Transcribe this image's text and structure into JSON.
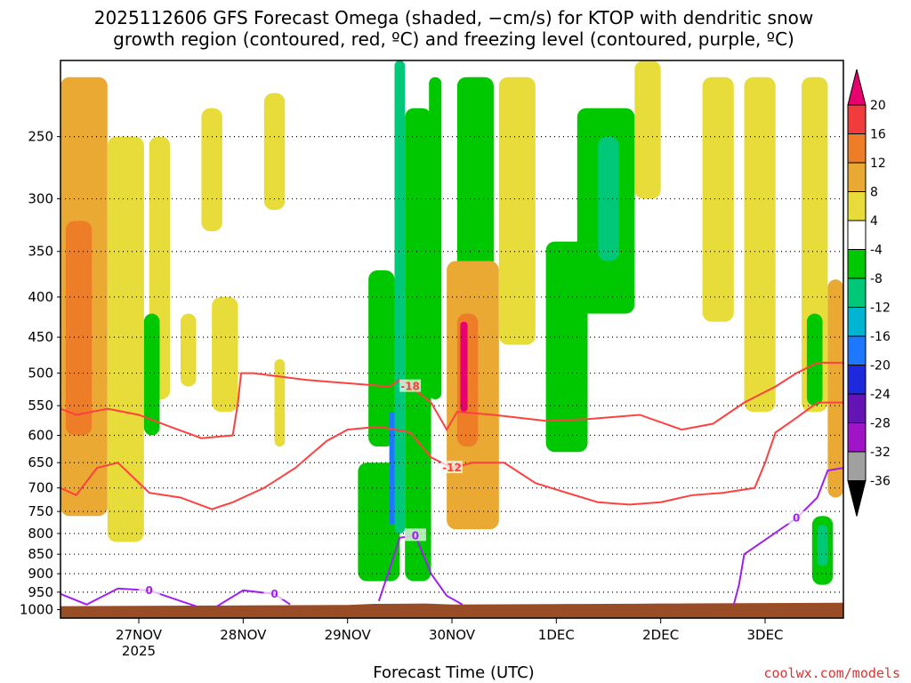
{
  "chart_data": {
    "type": "heatmap",
    "title_line1": "2025112606 GFS Forecast Omega (shaded, −cm/s) for KTOP with dendritic snow",
    "title_line2": "growth region (contoured, red, ºC) and freezing level (contoured, purple, ºC)",
    "xlabel": "Forecast Time (UTC)",
    "credit": "coolwx.com/models",
    "ylim": [
      1000,
      200
    ],
    "y_ticks": [
      250,
      300,
      350,
      400,
      450,
      500,
      550,
      600,
      650,
      700,
      750,
      800,
      850,
      900,
      950,
      1000
    ],
    "x_range_days": [
      26.25,
      33.75
    ],
    "x_ticks": [
      {
        "day": 27,
        "label": "27NOV",
        "sub": "2025"
      },
      {
        "day": 28,
        "label": "28NOV",
        "sub": ""
      },
      {
        "day": 29,
        "label": "29NOV",
        "sub": ""
      },
      {
        "day": 30,
        "label": "30NOV",
        "sub": ""
      },
      {
        "day": 31,
        "label": "1DEC",
        "sub": ""
      },
      {
        "day": 32,
        "label": "2DEC",
        "sub": ""
      },
      {
        "day": 33,
        "label": "3DEC",
        "sub": ""
      }
    ],
    "colorbar": {
      "labels": [
        "20",
        "16",
        "12",
        "8",
        "4",
        "-4",
        "-8",
        "-12",
        "-16",
        "-20",
        "-24",
        "-28",
        "-32",
        "-36"
      ],
      "colors": [
        "#e8006e",
        "#f03c3c",
        "#ee7d28",
        "#e9a933",
        "#e8dc3a",
        "#ffffff",
        "#00c800",
        "#00c878",
        "#00b4d2",
        "#1e78ff",
        "#1e28dc",
        "#6414b4",
        "#a014c8",
        "#a0a0a0"
      ]
    },
    "red_contours": [
      {
        "level": -18,
        "label": "-18",
        "points": [
          [
            26.25,
            555
          ],
          [
            26.4,
            565
          ],
          [
            26.7,
            555
          ],
          [
            27.0,
            565
          ],
          [
            27.3,
            585
          ],
          [
            27.6,
            605
          ],
          [
            27.9,
            600
          ],
          [
            27.95,
            545
          ],
          [
            27.98,
            500
          ],
          [
            28.1,
            500
          ],
          [
            28.6,
            510
          ],
          [
            29.0,
            515
          ],
          [
            29.4,
            520
          ],
          [
            29.5,
            510
          ],
          [
            29.6,
            520
          ],
          [
            29.8,
            545
          ],
          [
            29.95,
            590
          ],
          [
            30.05,
            560
          ],
          [
            30.4,
            565
          ],
          [
            30.9,
            575
          ],
          [
            31.3,
            572
          ],
          [
            31.8,
            565
          ],
          [
            32.2,
            590
          ],
          [
            32.5,
            580
          ],
          [
            32.8,
            545
          ],
          [
            33.1,
            520
          ],
          [
            33.3,
            500
          ],
          [
            33.5,
            485
          ],
          [
            33.75,
            485
          ]
        ]
      },
      {
        "level": -12,
        "label": "-12",
        "points": [
          [
            26.25,
            700
          ],
          [
            26.4,
            715
          ],
          [
            26.6,
            660
          ],
          [
            26.8,
            650
          ],
          [
            27.1,
            710
          ],
          [
            27.4,
            720
          ],
          [
            27.7,
            745
          ],
          [
            27.9,
            730
          ],
          [
            28.2,
            700
          ],
          [
            28.5,
            660
          ],
          [
            28.8,
            610
          ],
          [
            29.0,
            590
          ],
          [
            29.3,
            585
          ],
          [
            29.6,
            595
          ],
          [
            29.8,
            640
          ],
          [
            30.0,
            660
          ],
          [
            30.2,
            650
          ],
          [
            30.5,
            650
          ],
          [
            30.8,
            690
          ],
          [
            31.1,
            710
          ],
          [
            31.4,
            730
          ],
          [
            31.7,
            735
          ],
          [
            32.0,
            730
          ],
          [
            32.3,
            715
          ],
          [
            32.6,
            710
          ],
          [
            32.9,
            700
          ],
          [
            33.0,
            650
          ],
          [
            33.1,
            595
          ],
          [
            33.3,
            570
          ],
          [
            33.5,
            545
          ],
          [
            33.75,
            545
          ]
        ]
      }
    ],
    "purple_contours": [
      {
        "level": 0,
        "label": "0",
        "points": [
          [
            26.25,
            955
          ],
          [
            26.5,
            985
          ],
          [
            26.8,
            940
          ],
          [
            27.1,
            945
          ],
          [
            27.4,
            975
          ],
          [
            27.55,
            990
          ]
        ]
      },
      {
        "level": 0,
        "label": "0",
        "points": [
          [
            27.75,
            990
          ],
          [
            28.0,
            945
          ],
          [
            28.3,
            955
          ],
          [
            28.45,
            985
          ]
        ]
      },
      {
        "level": 0,
        "label": "0",
        "points": [
          [
            29.3,
            975
          ],
          [
            29.4,
            890
          ],
          [
            29.5,
            810
          ],
          [
            29.65,
            805
          ],
          [
            29.8,
            900
          ],
          [
            29.95,
            960
          ],
          [
            30.1,
            985
          ]
        ]
      },
      {
        "level": 0,
        "label": "0",
        "points": [
          [
            32.7,
            985
          ],
          [
            32.75,
            930
          ],
          [
            32.8,
            850
          ],
          [
            33.0,
            815
          ],
          [
            33.3,
            765
          ],
          [
            33.5,
            720
          ],
          [
            33.6,
            665
          ],
          [
            33.75,
            660
          ]
        ]
      }
    ],
    "omega_blobs": [
      {
        "x0": 26.25,
        "x1": 26.7,
        "p0": 210,
        "p1": 760,
        "v": 8
      },
      {
        "x0": 26.3,
        "x1": 26.55,
        "p0": 320,
        "p1": 600,
        "v": 12
      },
      {
        "x0": 26.7,
        "x1": 27.05,
        "p0": 250,
        "p1": 820,
        "v": 4
      },
      {
        "x0": 27.1,
        "x1": 27.3,
        "p0": 250,
        "p1": 540,
        "v": 4
      },
      {
        "x0": 27.4,
        "x1": 27.55,
        "p0": 420,
        "p1": 520,
        "v": 4
      },
      {
        "x0": 27.6,
        "x1": 27.8,
        "p0": 230,
        "p1": 330,
        "v": 4
      },
      {
        "x0": 27.7,
        "x1": 27.95,
        "p0": 400,
        "p1": 560,
        "v": 4
      },
      {
        "x0": 28.2,
        "x1": 28.4,
        "p0": 220,
        "p1": 310,
        "v": 4
      },
      {
        "x0": 28.3,
        "x1": 28.4,
        "p0": 480,
        "p1": 620,
        "v": 4
      },
      {
        "x0": 27.05,
        "x1": 27.2,
        "p0": 420,
        "p1": 600,
        "v": -8
      },
      {
        "x0": 29.2,
        "x1": 29.45,
        "p0": 370,
        "p1": 620,
        "v": -8
      },
      {
        "x0": 29.1,
        "x1": 29.5,
        "p0": 650,
        "p1": 920,
        "v": -8
      },
      {
        "x0": 29.45,
        "x1": 29.55,
        "p0": 200,
        "p1": 800,
        "v": -12
      },
      {
        "x0": 29.55,
        "x1": 29.8,
        "p0": 230,
        "p1": 920,
        "v": -8
      },
      {
        "x0": 29.4,
        "x1": 29.45,
        "p0": 560,
        "p1": 780,
        "v": -20
      },
      {
        "x0": 29.78,
        "x1": 29.9,
        "p0": 210,
        "p1": 540,
        "v": -8
      },
      {
        "x0": 30.05,
        "x1": 30.4,
        "p0": 210,
        "p1": 680,
        "v": -8
      },
      {
        "x0": 29.95,
        "x1": 30.45,
        "p0": 360,
        "p1": 790,
        "v": 8
      },
      {
        "x0": 30.05,
        "x1": 30.25,
        "p0": 420,
        "p1": 620,
        "v": 12
      },
      {
        "x0": 30.08,
        "x1": 30.15,
        "p0": 430,
        "p1": 560,
        "v": 20
      },
      {
        "x0": 30.45,
        "x1": 30.8,
        "p0": 210,
        "p1": 460,
        "v": 4
      },
      {
        "x0": 30.9,
        "x1": 31.3,
        "p0": 340,
        "p1": 630,
        "v": -8
      },
      {
        "x0": 31.2,
        "x1": 31.75,
        "p0": 230,
        "p1": 420,
        "v": -8
      },
      {
        "x0": 31.4,
        "x1": 31.6,
        "p0": 250,
        "p1": 360,
        "v": -12
      },
      {
        "x0": 31.75,
        "x1": 32.0,
        "p0": 200,
        "p1": 300,
        "v": 4
      },
      {
        "x0": 32.4,
        "x1": 32.7,
        "p0": 210,
        "p1": 430,
        "v": 4
      },
      {
        "x0": 32.8,
        "x1": 33.1,
        "p0": 210,
        "p1": 560,
        "v": 4
      },
      {
        "x0": 33.35,
        "x1": 33.6,
        "p0": 210,
        "p1": 560,
        "v": 4
      },
      {
        "x0": 33.4,
        "x1": 33.55,
        "p0": 420,
        "p1": 550,
        "v": -8
      },
      {
        "x0": 33.45,
        "x1": 33.65,
        "p0": 760,
        "p1": 930,
        "v": -8
      },
      {
        "x0": 33.5,
        "x1": 33.6,
        "p0": 780,
        "p1": 880,
        "v": -12
      },
      {
        "x0": 33.6,
        "x1": 33.75,
        "p0": 380,
        "p1": 720,
        "v": 8
      }
    ],
    "terrain_color": "#994d26"
  }
}
